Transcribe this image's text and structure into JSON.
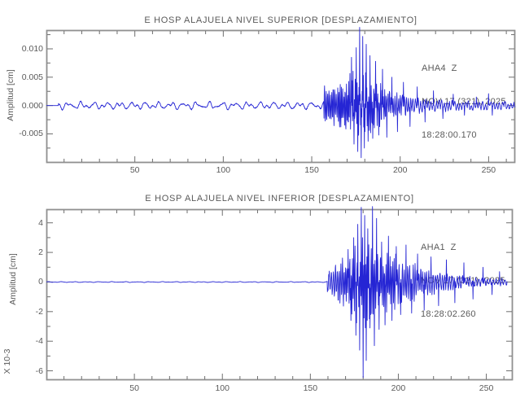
{
  "colors": {
    "background": "#ffffff",
    "trace": "#2525d4",
    "frame": "#909090",
    "tick": "#6e6e6e",
    "text": "#5a5a5a"
  },
  "chart_data": [
    {
      "type": "line",
      "title": "E HOSP ALAJUELA NIVEL SUPERIOR [DESPLAZAMIENTO]",
      "station": "AHA4  Z",
      "date": "NOV 17 (321), 2025",
      "time": "18:28:00.170",
      "ylabel": "Amplitud [cm]",
      "xlim": [
        0,
        265
      ],
      "x_minor_step": 10,
      "x_major_step": 50,
      "x_major_ticks": [
        50,
        100,
        150,
        200,
        250
      ],
      "ylim": [
        -0.0101,
        0.0133
      ],
      "y_tick_step": 0.0025,
      "y_labeled_ticks": [
        {
          "value": 0.01,
          "label": "0.010"
        },
        {
          "value": 0.005,
          "label": "0.005"
        },
        {
          "value": 0,
          "label": "0.000"
        },
        {
          "value": -0.005,
          "label": "-0.005"
        }
      ],
      "waveform": {
        "seed": 11,
        "flat_frac": 0.026,
        "onset_frac": 0.592,
        "peak_frac": 0.668,
        "noise_amp": 0.00075,
        "burst_base": 0.0032,
        "peak_typ": 0.0063,
        "tau": 0.075,
        "coda_amp": 0.0012,
        "trace_end": 1.0,
        "peak_value": 0.0138,
        "trough_value": -0.0092,
        "spikes": [
          [
            0.651,
            0.0085
          ],
          [
            0.6565,
            -0.0068
          ],
          [
            0.661,
            0.0102
          ],
          [
            0.6645,
            -0.0081
          ],
          [
            0.668,
            0.0138
          ],
          [
            0.6715,
            -0.0092
          ],
          [
            0.675,
            0.0122
          ],
          [
            0.6785,
            -0.0075
          ],
          [
            0.682,
            0.0108
          ],
          [
            0.686,
            -0.0063
          ],
          [
            0.6905,
            0.0088
          ],
          [
            0.696,
            -0.0058
          ],
          [
            0.702,
            0.0078
          ],
          [
            0.709,
            -0.0052
          ],
          [
            0.717,
            0.0064
          ],
          [
            0.726,
            -0.0056
          ],
          [
            0.737,
            0.005
          ],
          [
            0.749,
            -0.0046
          ],
          [
            0.762,
            0.0041
          ],
          [
            0.776,
            -0.0037
          ],
          [
            0.791,
            0.0033
          ],
          [
            0.808,
            -0.0029
          ],
          [
            0.826,
            0.0026
          ],
          [
            0.846,
            -0.0023
          ],
          [
            0.868,
            0.002
          ],
          [
            0.892,
            -0.0017
          ],
          [
            0.917,
            0.0015
          ],
          [
            0.943,
            0.0021
          ],
          [
            0.951,
            -0.0017
          ]
        ]
      }
    },
    {
      "type": "line",
      "title": "E HOSP ALAJUELA NIVEL INFERIOR [DESPLAZAMIENTO]",
      "station": "AHA1  Z",
      "date": "NOV 17 (321), 2025",
      "time": "18:28:02.260",
      "ylabel": "Amplitud [cm]",
      "scale_label": "X 10-3",
      "xlim": [
        0,
        265
      ],
      "x_minor_step": 10,
      "x_major_step": 50,
      "x_major_ticks": [
        50,
        100,
        150,
        200,
        250
      ],
      "ylim": [
        -6.63,
        4.92
      ],
      "y_tick_step": 1,
      "y_labeled_ticks": [
        {
          "value": 4,
          "label": "4"
        },
        {
          "value": 2,
          "label": "2"
        },
        {
          "value": 0,
          "label": "0"
        },
        {
          "value": -2,
          "label": "-2"
        },
        {
          "value": -4,
          "label": "-4"
        },
        {
          "value": -6,
          "label": "-6"
        }
      ],
      "waveform": {
        "seed": 23,
        "flat_frac": 0.0,
        "onset_frac": 0.602,
        "peak_frac": 0.678,
        "noise_amp": 0.032,
        "burst_base": 0.85,
        "peak_typ": 3.3,
        "tau": 0.105,
        "coda_amp": 0.5,
        "trace_end": 0.988,
        "peak_value": 5.1,
        "trough_value": -6.45,
        "spikes": [
          [
            0.647,
            2.2
          ],
          [
            0.653,
            -2.6
          ],
          [
            0.659,
            3.0
          ],
          [
            0.6635,
            -3.6
          ],
          [
            0.668,
            3.9
          ],
          [
            0.672,
            -4.6
          ],
          [
            0.6755,
            5.05
          ],
          [
            0.679,
            -6.45
          ],
          [
            0.6825,
            4.5
          ],
          [
            0.686,
            -5.3
          ],
          [
            0.6895,
            3.6
          ],
          [
            0.694,
            -3.1
          ],
          [
            0.699,
            5.1
          ],
          [
            0.7035,
            -4.3
          ],
          [
            0.708,
            4.3
          ],
          [
            0.7135,
            -3.2
          ],
          [
            0.719,
            2.7
          ],
          [
            0.726,
            -2.9
          ],
          [
            0.7335,
            3.1
          ],
          [
            0.741,
            -2.6
          ],
          [
            0.75,
            2.4
          ],
          [
            0.76,
            -2.2
          ],
          [
            0.771,
            2.5
          ],
          [
            0.783,
            -2.1
          ],
          [
            0.796,
            1.9
          ],
          [
            0.81,
            -1.9
          ],
          [
            0.825,
            1.7
          ],
          [
            0.841,
            -1.6
          ],
          [
            0.858,
            1.5
          ],
          [
            0.876,
            -1.4
          ],
          [
            0.895,
            1.3
          ],
          [
            0.915,
            -1.15
          ],
          [
            0.936,
            1.0
          ],
          [
            0.956,
            -0.85
          ],
          [
            0.972,
            0.7
          ]
        ]
      }
    }
  ]
}
